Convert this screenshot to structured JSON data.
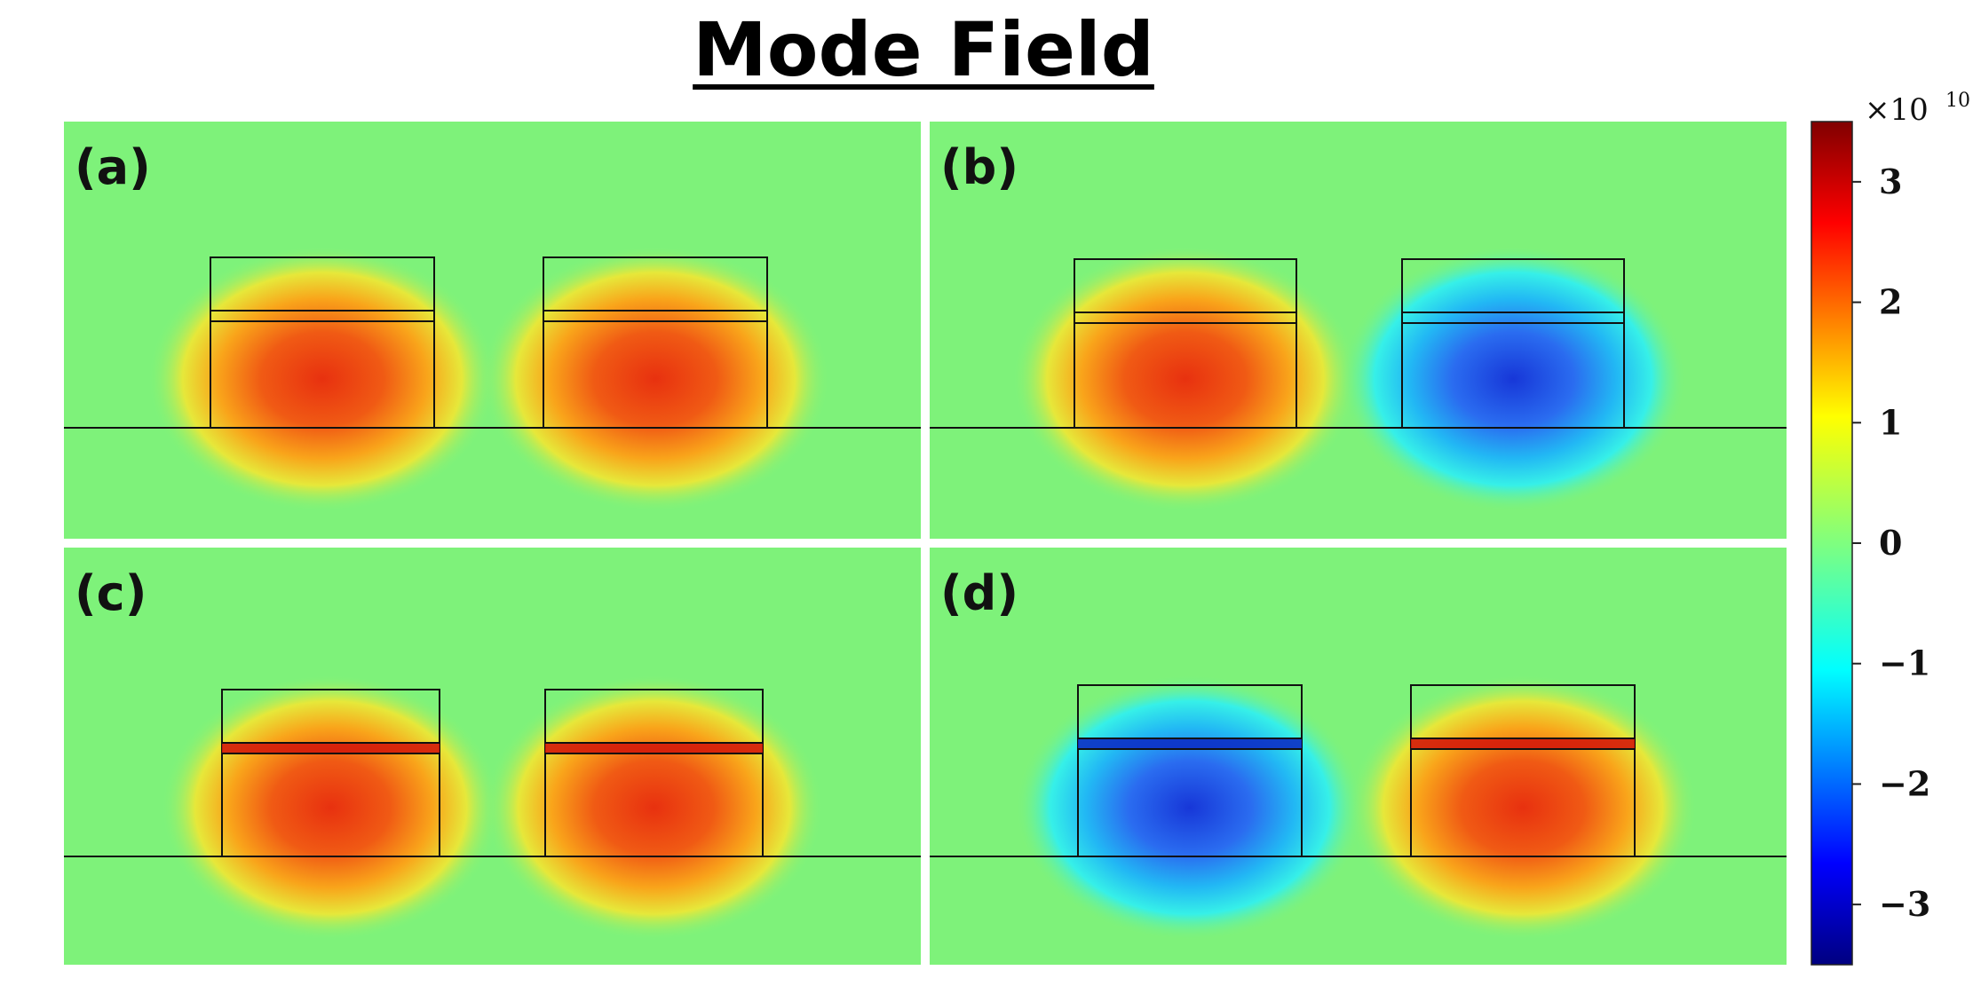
{
  "title": "Mode Field",
  "panels": [
    {
      "id": "a",
      "label": "(a)",
      "left_sign": 1,
      "right_sign": 1,
      "thin_layer": false
    },
    {
      "id": "b",
      "label": "(b)",
      "left_sign": 1,
      "right_sign": -1,
      "thin_layer": false
    },
    {
      "id": "c",
      "label": "(c)",
      "left_sign": 1,
      "right_sign": 1,
      "thin_layer": true
    },
    {
      "id": "d",
      "label": "(d)",
      "left_sign": -1,
      "right_sign": 1,
      "thin_layer": true
    }
  ],
  "colorbar": {
    "multiplier": "×10",
    "exponent": "10",
    "range": [
      -3.5,
      3.5
    ],
    "ticks": [
      {
        "value": 3,
        "label": "3"
      },
      {
        "value": 2,
        "label": "2"
      },
      {
        "value": 1,
        "label": "1"
      },
      {
        "value": 0,
        "label": "0"
      },
      {
        "value": -1,
        "label": "−1"
      },
      {
        "value": -2,
        "label": "−2"
      },
      {
        "value": -3,
        "label": "−3"
      }
    ]
  },
  "colors": {
    "background_field": "#7ef27a",
    "positive_peak": "#e83a12",
    "negative_peak": "#1c4ce0"
  }
}
